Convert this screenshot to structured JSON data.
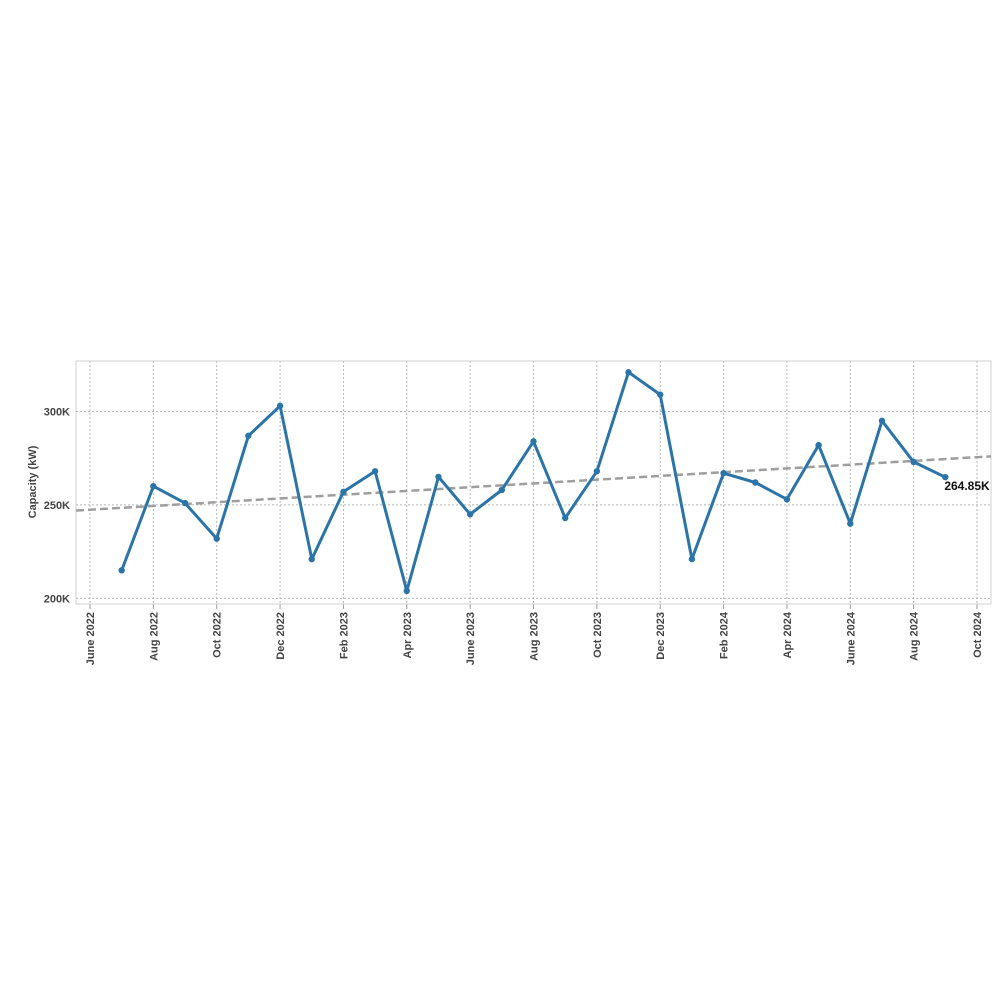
{
  "chart_data": {
    "type": "line",
    "ylabel": "Capacity (kW)",
    "ylim": [
      197000,
      327000
    ],
    "xlim": [
      "2022-06",
      "2024-10"
    ],
    "yticks": [
      {
        "value": 200000,
        "label": "200K"
      },
      {
        "value": 250000,
        "label": "250K"
      },
      {
        "value": 300000,
        "label": "300K"
      }
    ],
    "xticks": [
      {
        "date": "2022-06",
        "label": "June 2022"
      },
      {
        "date": "2022-08",
        "label": "Aug 2022"
      },
      {
        "date": "2022-10",
        "label": "Oct 2022"
      },
      {
        "date": "2022-12",
        "label": "Dec 2022"
      },
      {
        "date": "2023-02",
        "label": "Feb 2023"
      },
      {
        "date": "2023-04",
        "label": "Apr 2023"
      },
      {
        "date": "2023-06",
        "label": "June 2023"
      },
      {
        "date": "2023-08",
        "label": "Aug 2023"
      },
      {
        "date": "2023-10",
        "label": "Oct 2023"
      },
      {
        "date": "2023-12",
        "label": "Dec 2023"
      },
      {
        "date": "2024-02",
        "label": "Feb 2024"
      },
      {
        "date": "2024-04",
        "label": "Apr 2024"
      },
      {
        "date": "2024-06",
        "label": "June 2024"
      },
      {
        "date": "2024-08",
        "label": "Aug 2024"
      },
      {
        "date": "2024-10",
        "label": "Oct 2024"
      }
    ],
    "series": [
      {
        "x": [
          "2022-07",
          "2022-08",
          "2022-09",
          "2022-10",
          "2022-11",
          "2022-12",
          "2023-01",
          "2023-02",
          "2023-03",
          "2023-04",
          "2023-05",
          "2023-06",
          "2023-07",
          "2023-08",
          "2023-09",
          "2023-10",
          "2023-11",
          "2023-12",
          "2024-01",
          "2024-02",
          "2024-03",
          "2024-04",
          "2024-05",
          "2024-06",
          "2024-07",
          "2024-08",
          "2024-09"
        ],
        "values": [
          215000,
          260000,
          251000,
          232000,
          287000,
          303000,
          221000,
          257000,
          268000,
          204000,
          265000,
          245000,
          258000,
          284000,
          243000,
          268000,
          321000,
          309000,
          221000,
          267000,
          262000,
          253000,
          282000,
          240000,
          295000,
          273000,
          264850
        ],
        "color": "#2b74a8"
      }
    ],
    "trendline": {
      "start": [
        "2022-06",
        247000
      ],
      "end": [
        "2024-10",
        276000
      ],
      "color": "#9e9e9e",
      "style": "dashed"
    },
    "annotations": [
      {
        "x": "2024-09",
        "y": 264850,
        "text": "264.85K"
      }
    ],
    "grid": true
  }
}
